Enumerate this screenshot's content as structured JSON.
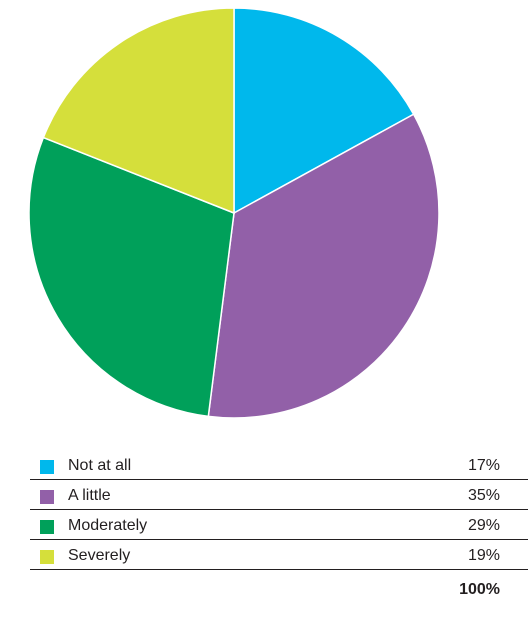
{
  "chart_data": {
    "type": "pie",
    "categories": [
      "Not at all",
      "A little",
      "Moderately",
      "Severely"
    ],
    "values": [
      17,
      35,
      29,
      19
    ],
    "value_labels": [
      "17%",
      "35%",
      "29%",
      "19%"
    ],
    "colors": [
      "#00b8ec",
      "#9260a8",
      "#00a05a",
      "#d5df3b"
    ],
    "total_label": "100%",
    "start_angle_deg": 0,
    "direction": "clockwise",
    "legend_placement": "bottom"
  }
}
